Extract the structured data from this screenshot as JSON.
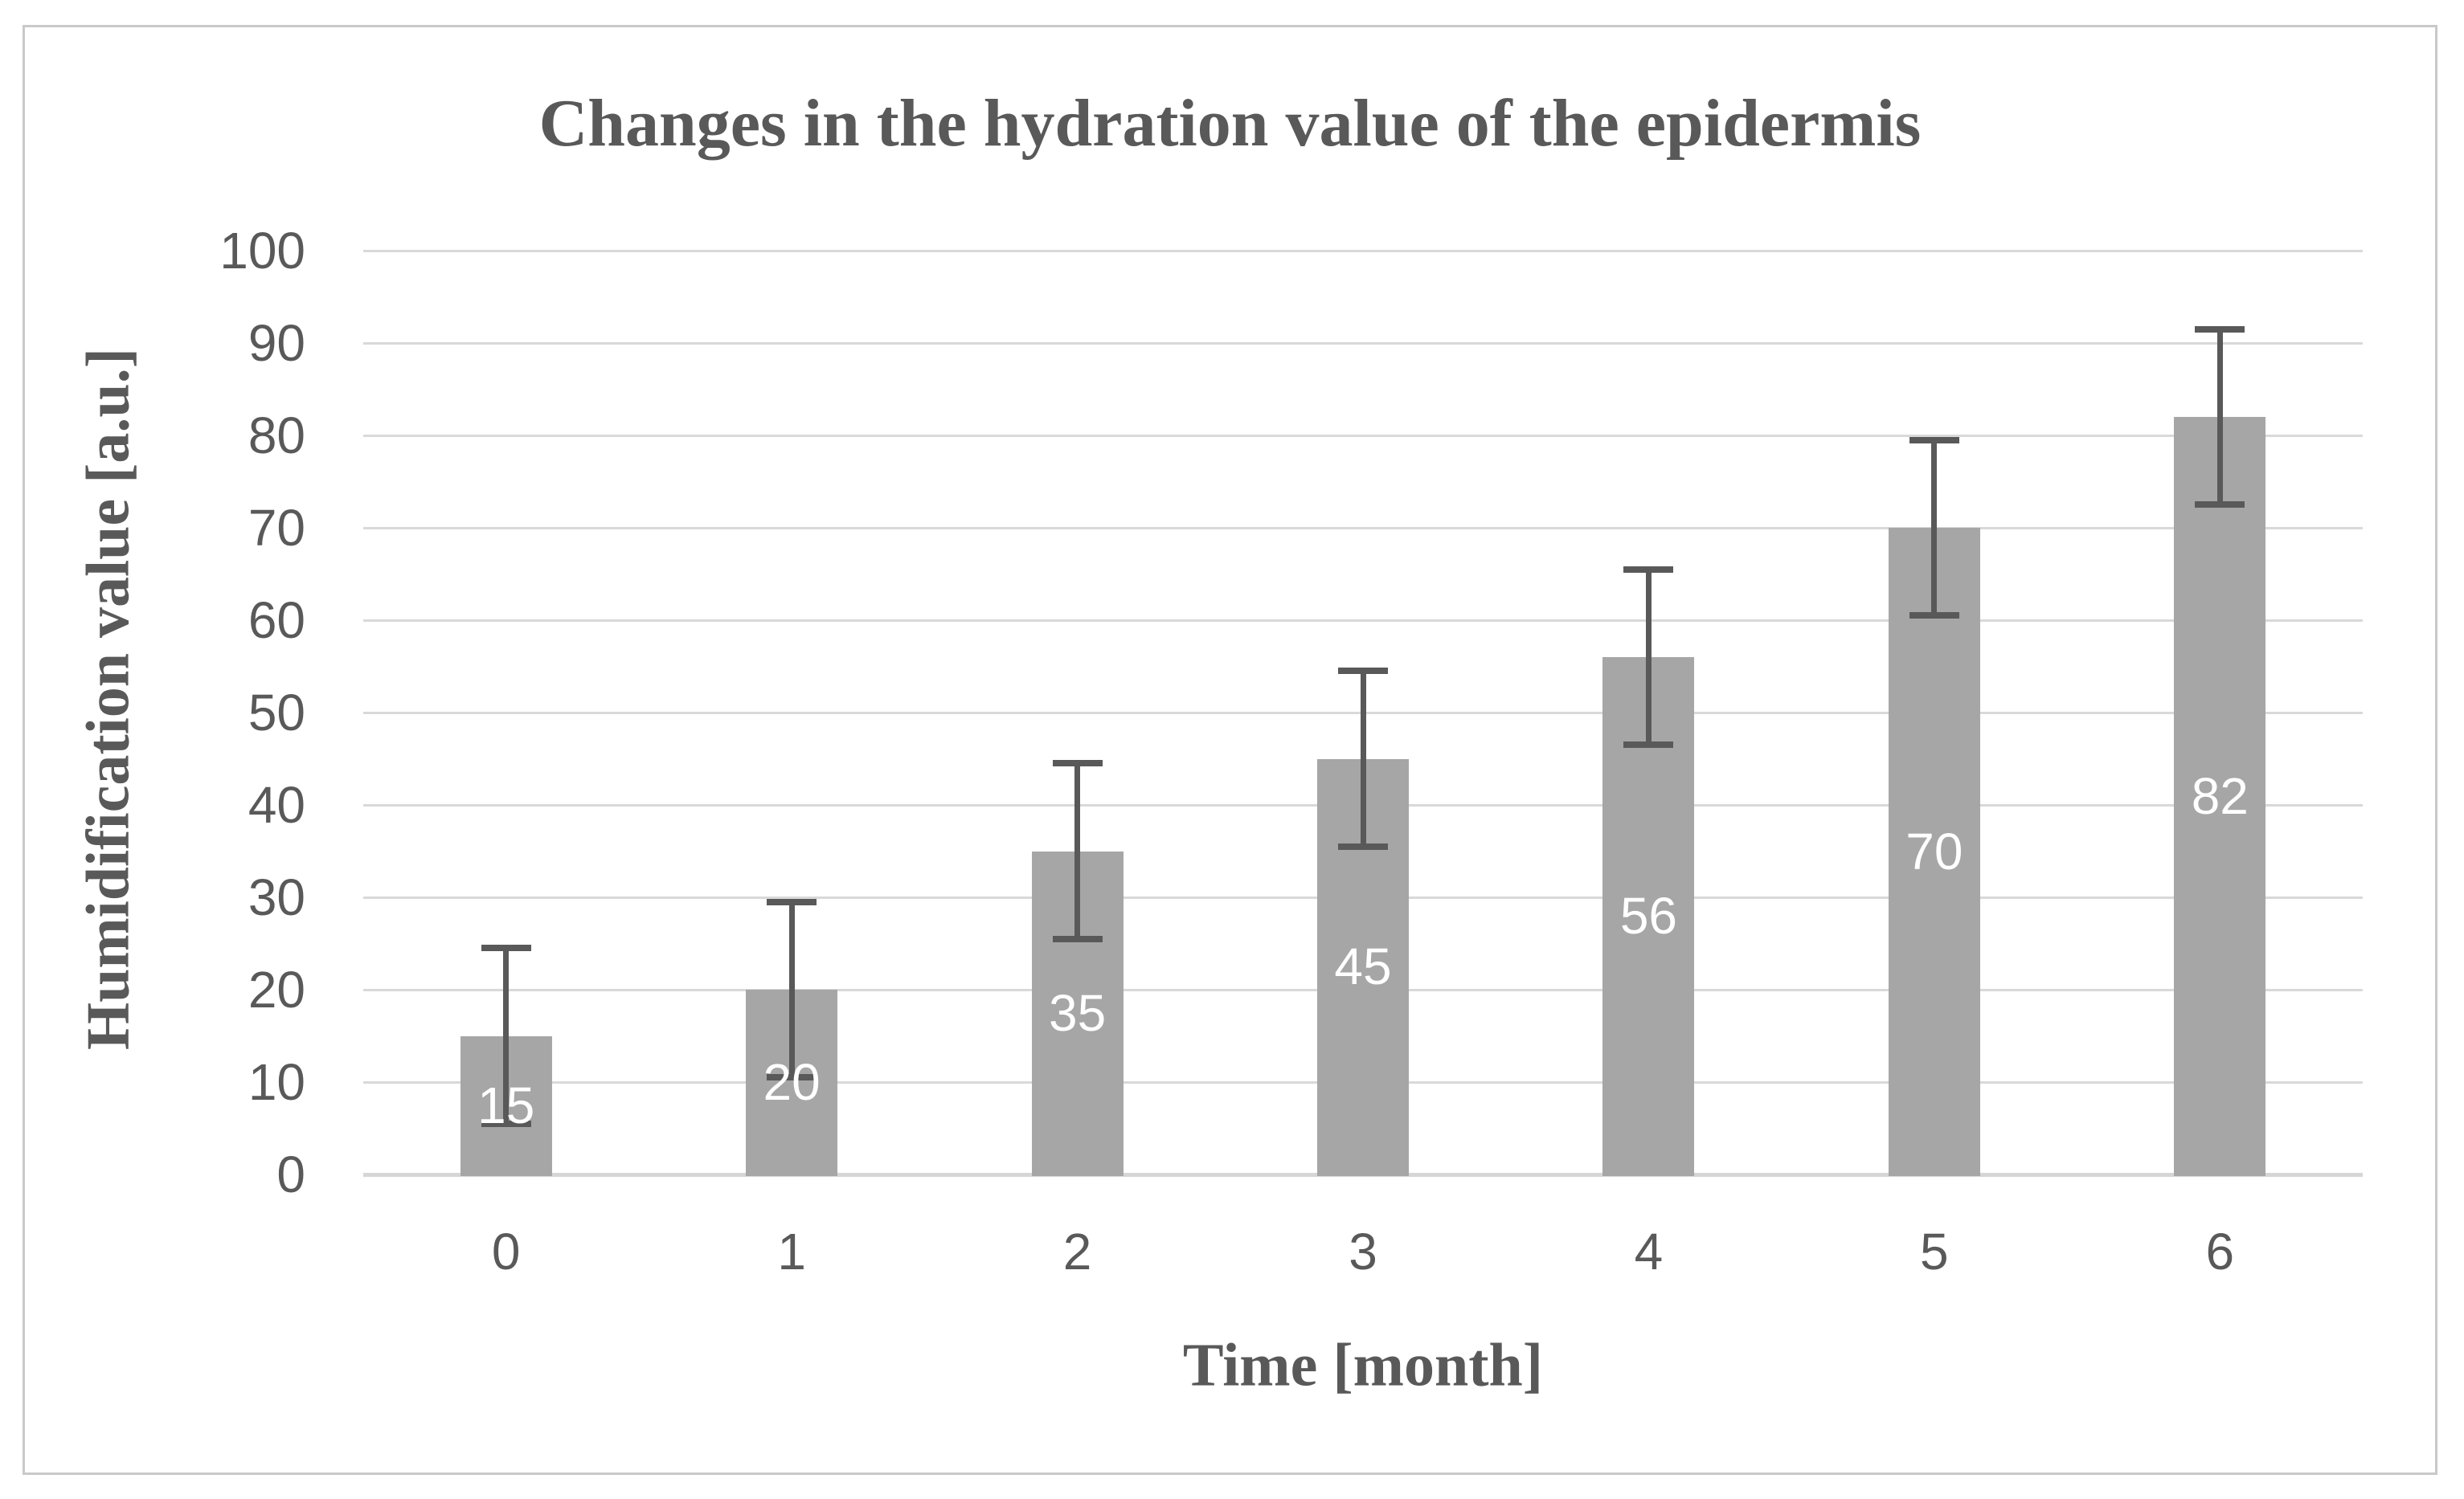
{
  "chart_data": {
    "type": "bar",
    "title": "Changes in the hydration value of the epidermis",
    "xlabel": "Time [month]",
    "ylabel": "Humidification value [a.u.]",
    "categories": [
      "0",
      "1",
      "2",
      "3",
      "4",
      "5",
      "6"
    ],
    "values": [
      15,
      20,
      35,
      45,
      56,
      70,
      82
    ],
    "data_labels": [
      "15",
      "20",
      "35",
      "45",
      "56",
      "70",
      "82"
    ],
    "error_bars": {
      "type": "symmetric",
      "value": 9.5
    },
    "ylim": [
      0,
      100
    ],
    "ytick_step": 10,
    "ytick_labels": [
      "0",
      "10",
      "20",
      "30",
      "40",
      "50",
      "60",
      "70",
      "80",
      "90",
      "100"
    ],
    "grid": true,
    "legend": null,
    "data_label_position": "inside-center",
    "colors": {
      "bar_fill": "#a6a6a6",
      "error_bar": "#595959",
      "gridline": "#d9d9d9",
      "zero_line": "#d6d6d6",
      "text": "#595959",
      "data_label_text": "#ffffff",
      "frame_border": "#c9c9c9",
      "background": "#ffffff"
    }
  }
}
